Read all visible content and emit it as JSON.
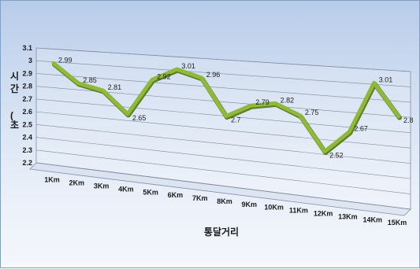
{
  "chart_data": {
    "type": "line",
    "view": "3d",
    "xlabel": "통달거리",
    "ylabel": [
      "시",
      "간",
      "(",
      "초"
    ],
    "categories": [
      "1Km",
      "2Km",
      "3Km",
      "4Km",
      "5Km",
      "6Km",
      "7Km",
      "8Km",
      "9Km",
      "10Km",
      "11Km",
      "12Km",
      "13Km",
      "14Km",
      "15Km"
    ],
    "yticks": [
      "2.2",
      "2.3",
      "2.4",
      "2.5",
      "2.6",
      "2.7",
      "2.8",
      "2.9",
      "3",
      "3.1"
    ],
    "ylim": [
      2.2,
      3.1
    ],
    "grid": true,
    "series": [
      {
        "values": [
          2.99,
          2.85,
          2.81,
          2.65,
          2.92,
          3.01,
          2.96,
          2.7,
          2.79,
          2.82,
          2.75,
          2.52,
          2.67,
          3.01,
          2.8
        ],
        "labels": [
          "2.99",
          "2.85",
          "2.81",
          "2.65",
          "2.92",
          "3.01",
          "2.96",
          "2.7",
          "2.79",
          "2.82",
          "2.75",
          "2.52",
          "2.67",
          "3.01",
          "2.8"
        ],
        "color": "#8fb83c"
      }
    ]
  },
  "style": {
    "line_color": "#8fb83c",
    "line_edge": "#5c7f1f",
    "grid_color": "#7f8a99",
    "wall_edge": "#8090a8"
  }
}
